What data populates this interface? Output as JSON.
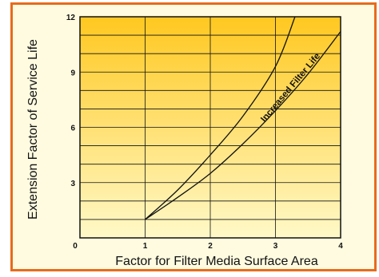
{
  "chart_data": {
    "type": "line",
    "title": "",
    "xlabel": "Factor for Filter Media Surface Area",
    "ylabel": "Extension Factor of Service Life",
    "xlim": [
      0,
      4
    ],
    "ylim": [
      0,
      12
    ],
    "x_ticks": [
      "0",
      "1",
      "2",
      "3",
      "4"
    ],
    "y_ticks": [
      "3",
      "6",
      "9",
      "12"
    ],
    "grid": true,
    "annotation": "Increased Filter Life",
    "series": [
      {
        "x": [
          1.0,
          1.5,
          2.0,
          2.5,
          3.0,
          3.3
        ],
        "y": [
          1.0,
          2.6,
          4.5,
          6.6,
          9.3,
          12.0
        ]
      },
      {
        "x": [
          1.0,
          1.5,
          2.0,
          2.5,
          3.0,
          3.5,
          4.0
        ],
        "y": [
          1.0,
          2.2,
          3.5,
          5.1,
          6.9,
          8.9,
          11.2
        ]
      }
    ],
    "colors": {
      "frame": "#e86b1c",
      "plot_top": "#ffc820",
      "plot_bottom": "#fff9c8",
      "line": "#111111",
      "grid": "#111111"
    }
  }
}
